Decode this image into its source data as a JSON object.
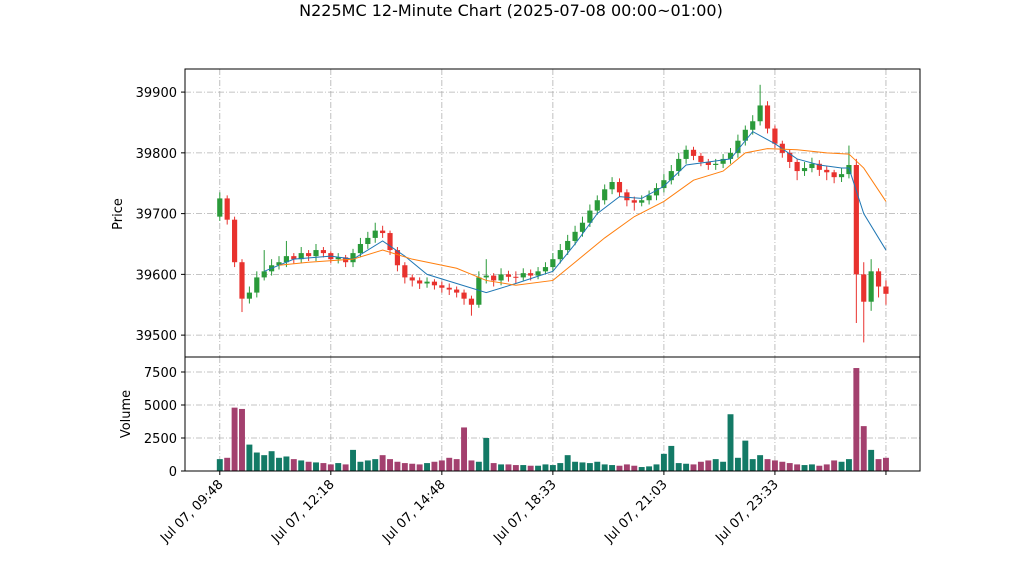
{
  "chart_data": {
    "type": "candlestick",
    "title": "N225MC 12-Minute Chart (2025-07-08 00:00~01:00)",
    "ylabel": "Price",
    "y2label": "Volume",
    "categories": [
      "Jul 07, 09:48",
      null,
      null,
      null,
      null,
      null,
      null,
      null,
      null,
      null,
      null,
      null,
      null,
      null,
      null,
      "Jul 07, 12:18",
      null,
      null,
      null,
      null,
      null,
      null,
      null,
      null,
      null,
      null,
      null,
      null,
      null,
      null,
      "Jul 07, 14:48",
      null,
      null,
      null,
      null,
      null,
      null,
      null,
      null,
      null,
      null,
      null,
      null,
      null,
      null,
      "Jul 07, 18:33",
      null,
      null,
      null,
      null,
      null,
      null,
      null,
      null,
      null,
      null,
      null,
      null,
      null,
      null,
      "Jul 07, 21:03",
      null,
      null,
      null,
      null,
      null,
      null,
      null,
      null,
      null,
      null,
      null,
      null,
      null,
      null,
      "Jul 07, 23:33",
      null,
      null,
      null,
      null,
      null,
      null,
      null,
      null,
      null,
      null,
      null,
      null,
      null,
      null,
      null
    ],
    "xticks": [
      0,
      15,
      30,
      45,
      60,
      75,
      90
    ],
    "xlim": [
      -4.7,
      94.6
    ],
    "open": [
      39695,
      39725,
      39690,
      39620,
      39560,
      39570,
      39595,
      39605,
      39615,
      39620,
      39630,
      39625,
      39635,
      39630,
      39640,
      39635,
      39625,
      39628,
      39620,
      39635,
      39650,
      39660,
      39672,
      39668,
      39640,
      39615,
      39595,
      39590,
      39585,
      39588,
      39582,
      39578,
      39575,
      39570,
      39560,
      39550,
      39595,
      39598,
      39590,
      39600,
      39596,
      39595,
      39602,
      39598,
      39605,
      39612,
      39625,
      39640,
      39655,
      39670,
      39685,
      39705,
      39722,
      39740,
      39752,
      39735,
      39722,
      39718,
      39722,
      39730,
      39742,
      39755,
      39770,
      39790,
      39805,
      39795,
      39785,
      39780,
      39782,
      39790,
      39800,
      39820,
      39838,
      39852,
      39878,
      39840,
      39815,
      39800,
      39785,
      39770,
      39775,
      39782,
      39772,
      39768,
      39760,
      39765,
      39780,
      39600,
      39555,
      39605,
      39580
    ],
    "high": [
      39735,
      39730,
      39695,
      39625,
      39580,
      39605,
      39640,
      39625,
      39630,
      39655,
      39635,
      39645,
      39640,
      39650,
      39645,
      39638,
      39635,
      39632,
      39642,
      39660,
      39670,
      39685,
      39680,
      39672,
      39645,
      39620,
      39600,
      39595,
      39595,
      39592,
      39588,
      39585,
      39580,
      39575,
      39565,
      39605,
      39625,
      39602,
      39610,
      39606,
      39605,
      39610,
      39608,
      39612,
      39620,
      39635,
      39650,
      39665,
      39680,
      39695,
      39715,
      39730,
      39748,
      39760,
      39758,
      39740,
      39728,
      39730,
      39738,
      39750,
      39765,
      39780,
      39800,
      39812,
      39810,
      39800,
      39790,
      39790,
      39798,
      39808,
      39830,
      39845,
      39862,
      39912,
      39885,
      39845,
      39820,
      39805,
      39790,
      39785,
      39792,
      39788,
      39778,
      39772,
      39775,
      39812,
      39790,
      39620,
      39625,
      39610,
      39590
    ],
    "low": [
      39688,
      39682,
      39612,
      39538,
      39552,
      39562,
      39590,
      39598,
      39608,
      39612,
      39618,
      39618,
      39622,
      39622,
      39628,
      39618,
      39618,
      39612,
      39612,
      39628,
      39642,
      39652,
      39660,
      39632,
      39605,
      39585,
      39580,
      39576,
      39578,
      39575,
      39570,
      39566,
      39562,
      39550,
      39532,
      39545,
      39585,
      39580,
      39582,
      39588,
      39585,
      39590,
      39590,
      39592,
      39600,
      39605,
      39618,
      39632,
      39648,
      39662,
      39678,
      39698,
      39715,
      39732,
      39728,
      39712,
      39705,
      39712,
      39715,
      39722,
      39735,
      39748,
      39762,
      39782,
      39788,
      39778,
      39772,
      39772,
      39775,
      39782,
      39792,
      39812,
      39830,
      39845,
      39832,
      39808,
      39792,
      39775,
      39755,
      39762,
      39768,
      39762,
      39755,
      39750,
      39752,
      39758,
      39520,
      39488,
      39540,
      39562,
      39550
    ],
    "close": [
      39725,
      39690,
      39620,
      39560,
      39570,
      39595,
      39605,
      39615,
      39620,
      39630,
      39625,
      39635,
      39630,
      39640,
      39635,
      39625,
      39628,
      39620,
      39635,
      39650,
      39660,
      39672,
      39668,
      39640,
      39615,
      39595,
      39590,
      39585,
      39588,
      39582,
      39578,
      39575,
      39570,
      39560,
      39550,
      39595,
      39598,
      39590,
      39600,
      39596,
      39595,
      39602,
      39598,
      39605,
      39612,
      39625,
      39640,
      39655,
      39670,
      39685,
      39705,
      39722,
      39740,
      39752,
      39735,
      39722,
      39718,
      39722,
      39730,
      39742,
      39755,
      39770,
      39790,
      39805,
      39795,
      39785,
      39780,
      39782,
      39790,
      39800,
      39820,
      39838,
      39852,
      39878,
      39840,
      39815,
      39800,
      39785,
      39770,
      39775,
      39782,
      39772,
      39768,
      39760,
      39765,
      39780,
      39600,
      39555,
      39605,
      39580,
      39568
    ],
    "volume": [
      900,
      1000,
      4800,
      4700,
      2000,
      1400,
      1200,
      1500,
      1000,
      1100,
      900,
      800,
      700,
      650,
      600,
      500,
      600,
      500,
      1600,
      700,
      800,
      900,
      1200,
      900,
      700,
      600,
      550,
      500,
      600,
      700,
      800,
      1000,
      900,
      3300,
      800,
      700,
      2500,
      600,
      500,
      500,
      450,
      450,
      400,
      400,
      500,
      450,
      600,
      1200,
      700,
      650,
      600,
      700,
      500,
      450,
      400,
      500,
      400,
      300,
      350,
      500,
      1300,
      1900,
      600,
      550,
      500,
      700,
      800,
      900,
      700,
      4300,
      1000,
      2300,
      900,
      1200,
      900,
      800,
      700,
      600,
      500,
      450,
      500,
      400,
      500,
      800,
      700,
      900,
      7800,
      3400,
      1600,
      900,
      1000
    ],
    "up_color": "#2a9a3a",
    "down_color": "#e8322e",
    "volume_up_color": "#137a66",
    "volume_down_color": "#a3406e",
    "series": [
      {
        "color": "#1f77b4",
        "x": [
          6,
          10,
          15,
          18,
          22,
          25,
          28,
          32,
          36,
          40,
          45,
          48,
          51,
          54,
          57,
          60,
          63,
          66,
          69,
          72,
          75,
          78,
          81,
          84,
          85,
          87,
          90
        ],
        "values": [
          39605,
          39625,
          39630,
          39625,
          39655,
          39630,
          39600,
          39585,
          39570,
          39585,
          39605,
          39650,
          39700,
          39728,
          39725,
          39745,
          39780,
          39785,
          39790,
          39835,
          39815,
          39790,
          39780,
          39775,
          39775,
          39700,
          39640
        ]
      },
      {
        "color": "#ff7f0e",
        "x": [
          8,
          12,
          18,
          22,
          26,
          32,
          36,
          40,
          45,
          48,
          52,
          56,
          60,
          64,
          68,
          71,
          74,
          78,
          82,
          85,
          87,
          90
        ],
        "values": [
          39615,
          39620,
          39625,
          39640,
          39625,
          39610,
          39590,
          39582,
          39590,
          39620,
          39660,
          39695,
          39720,
          39755,
          39770,
          39800,
          39807,
          39805,
          39800,
          39798,
          39775,
          39720
        ]
      }
    ],
    "ylim": [
      39464,
      39938
    ],
    "yticks": [
      39500,
      39600,
      39700,
      39800,
      39900
    ],
    "y2lim": [
      0,
      8636
    ],
    "y2ticks": [
      0,
      2500,
      5000,
      7500
    ],
    "grid": true
  }
}
